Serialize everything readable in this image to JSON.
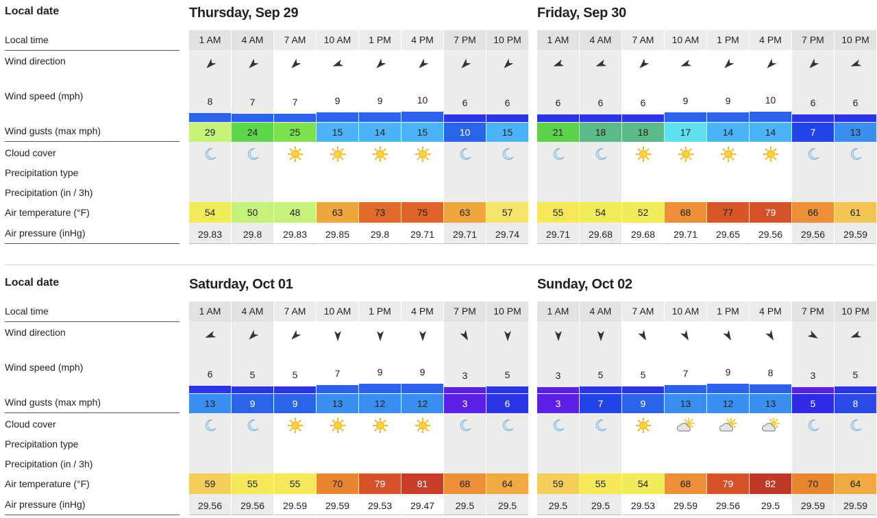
{
  "labels": {
    "local_date": "Local date",
    "local_time": "Local time",
    "wind_direction": "Wind direction",
    "wind_speed": "Wind speed (mph)",
    "wind_gusts": "Wind gusts (max mph)",
    "cloud_cover": "Cloud cover",
    "precip_type": "Precipitation type",
    "precip": "Precipitation (in / 3h)",
    "air_temp": "Air temperature (°F)",
    "air_pressure": "Air pressure (inHg)"
  },
  "colors": {
    "night_shade": "#ececec",
    "wind_bar": "#2742ef",
    "gust_scale": {
      "3": "#5d1fe3",
      "5": "#2f2ae6",
      "6": "#2a35e6",
      "7": "#2345e8",
      "8": "#2a4ae6",
      "9": "#2a64e8",
      "10": "#2a64e8",
      "12": "#3a8ef0",
      "13": "#3a8ef0",
      "14": "#4ab4f6",
      "15": "#4ab4f6",
      "17": "#5ee0ee",
      "18": "#5cb98a",
      "21": "#5cd14a",
      "24": "#5cd64a",
      "25": "#7be24d",
      "29": "#c6f37a"
    },
    "temp_scale": {
      "48": "#c6f27a",
      "50": "#c6f27a",
      "52": "#f1ec5a",
      "54": "#f1ec5a",
      "55": "#f7e85a",
      "57": "#f4e46a",
      "59": "#f3cf5a",
      "61": "#f3c552",
      "63": "#f0a63e",
      "64": "#f0aa40",
      "66": "#ec8f38",
      "68": "#ec8f38",
      "70": "#e8852f",
      "73": "#e06a2b",
      "75": "#de6429",
      "77": "#d8572a",
      "79": "#d45129",
      "81": "#c83d28",
      "82": "#be3a27"
    }
  },
  "blocks": [
    {
      "days": [
        {
          "title": "Thursday, Sep 29",
          "hours": [
            {
              "time": "1 AM",
              "night": true,
              "dir": "ne",
              "speed": "8",
              "gust": "29",
              "cloud": "moon",
              "temp": "54",
              "pressure": "29.83"
            },
            {
              "time": "4 AM",
              "night": true,
              "dir": "ne",
              "speed": "7",
              "gust": "24",
              "cloud": "moon",
              "temp": "50",
              "pressure": "29.8"
            },
            {
              "time": "7 AM",
              "night": false,
              "dir": "ne",
              "speed": "7",
              "gust": "25",
              "cloud": "sun",
              "temp": "48",
              "pressure": "29.83"
            },
            {
              "time": "10 AM",
              "night": false,
              "dir": "e",
              "speed": "9",
              "gust": "15",
              "cloud": "sun",
              "temp": "63",
              "pressure": "29.85"
            },
            {
              "time": "1 PM",
              "night": false,
              "dir": "ne",
              "speed": "9",
              "gust": "14",
              "cloud": "sun",
              "temp": "73",
              "pressure": "29.8"
            },
            {
              "time": "4 PM",
              "night": false,
              "dir": "ne",
              "speed": "10",
              "gust": "15",
              "cloud": "sun",
              "temp": "75",
              "pressure": "29.71"
            },
            {
              "time": "7 PM",
              "night": true,
              "dir": "ne",
              "speed": "6",
              "gust": "10",
              "cloud": "moon",
              "temp": "63",
              "pressure": "29.71"
            },
            {
              "time": "10 PM",
              "night": true,
              "dir": "ne",
              "speed": "6",
              "gust": "15",
              "cloud": "moon",
              "temp": "57",
              "pressure": "29.74"
            }
          ]
        },
        {
          "title": "Friday, Sep 30",
          "hours": [
            {
              "time": "1 AM",
              "night": true,
              "dir": "e",
              "speed": "6",
              "gust": "21",
              "cloud": "moon",
              "temp": "55",
              "pressure": "29.71"
            },
            {
              "time": "4 AM",
              "night": true,
              "dir": "e",
              "speed": "6",
              "gust": "18",
              "cloud": "moon",
              "temp": "54",
              "pressure": "29.68"
            },
            {
              "time": "7 AM",
              "night": false,
              "dir": "ne",
              "speed": "6",
              "gust": "18",
              "cloud": "sun",
              "temp": "52",
              "pressure": "29.68"
            },
            {
              "time": "10 AM",
              "night": false,
              "dir": "e",
              "speed": "9",
              "gust": "17",
              "cloud": "sun",
              "temp": "68",
              "pressure": "29.71"
            },
            {
              "time": "1 PM",
              "night": false,
              "dir": "ne",
              "speed": "9",
              "gust": "14",
              "cloud": "sun",
              "temp": "77",
              "pressure": "29.65"
            },
            {
              "time": "4 PM",
              "night": false,
              "dir": "ne",
              "speed": "10",
              "gust": "14",
              "cloud": "sun",
              "temp": "79",
              "pressure": "29.56"
            },
            {
              "time": "7 PM",
              "night": true,
              "dir": "ne",
              "speed": "6",
              "gust": "7",
              "cloud": "moon",
              "temp": "66",
              "pressure": "29.56"
            },
            {
              "time": "10 PM",
              "night": true,
              "dir": "e",
              "speed": "6",
              "gust": "13",
              "cloud": "moon",
              "temp": "61",
              "pressure": "29.59"
            }
          ]
        }
      ]
    },
    {
      "days": [
        {
          "title": "Saturday, Oct 01",
          "hours": [
            {
              "time": "1 AM",
              "night": true,
              "dir": "e",
              "speed": "6",
              "gust": "13",
              "cloud": "moon",
              "temp": "59",
              "pressure": "29.56"
            },
            {
              "time": "4 AM",
              "night": true,
              "dir": "ne",
              "speed": "5",
              "gust": "9",
              "cloud": "moon",
              "temp": "55",
              "pressure": "29.56"
            },
            {
              "time": "7 AM",
              "night": false,
              "dir": "ne",
              "speed": "5",
              "gust": "9",
              "cloud": "sun",
              "temp": "55",
              "pressure": "29.59"
            },
            {
              "time": "10 AM",
              "night": false,
              "dir": "n",
              "speed": "7",
              "gust": "13",
              "cloud": "sun",
              "temp": "70",
              "pressure": "29.59"
            },
            {
              "time": "1 PM",
              "night": false,
              "dir": "n",
              "speed": "9",
              "gust": "12",
              "cloud": "sun",
              "temp": "79",
              "pressure": "29.53"
            },
            {
              "time": "4 PM",
              "night": false,
              "dir": "n",
              "speed": "9",
              "gust": "12",
              "cloud": "sun",
              "temp": "81",
              "pressure": "29.47"
            },
            {
              "time": "7 PM",
              "night": true,
              "dir": "nw",
              "speed": "3",
              "gust": "3",
              "cloud": "moon",
              "temp": "68",
              "pressure": "29.5"
            },
            {
              "time": "10 PM",
              "night": true,
              "dir": "n",
              "speed": "5",
              "gust": "6",
              "cloud": "moon",
              "temp": "64",
              "pressure": "29.5"
            }
          ]
        },
        {
          "title": "Sunday, Oct 02",
          "hours": [
            {
              "time": "1 AM",
              "night": true,
              "dir": "n",
              "speed": "3",
              "gust": "3",
              "cloud": "moon",
              "temp": "59",
              "pressure": "29.5"
            },
            {
              "time": "4 AM",
              "night": true,
              "dir": "n",
              "speed": "5",
              "gust": "7",
              "cloud": "moon",
              "temp": "55",
              "pressure": "29.5"
            },
            {
              "time": "7 AM",
              "night": false,
              "dir": "nw",
              "speed": "5",
              "gust": "9",
              "cloud": "sun",
              "temp": "54",
              "pressure": "29.53"
            },
            {
              "time": "10 AM",
              "night": false,
              "dir": "nw",
              "speed": "7",
              "gust": "13",
              "cloud": "partly",
              "temp": "68",
              "pressure": "29.59"
            },
            {
              "time": "1 PM",
              "night": false,
              "dir": "nw",
              "speed": "9",
              "gust": "12",
              "cloud": "partly",
              "temp": "79",
              "pressure": "29.56"
            },
            {
              "time": "4 PM",
              "night": false,
              "dir": "nw",
              "speed": "8",
              "gust": "13",
              "cloud": "partly",
              "temp": "82",
              "pressure": "29.5"
            },
            {
              "time": "7 PM",
              "night": true,
              "dir": "w",
              "speed": "3",
              "gust": "5",
              "cloud": "moon",
              "temp": "70",
              "pressure": "29.59"
            },
            {
              "time": "10 PM",
              "night": true,
              "dir": "e",
              "speed": "5",
              "gust": "8",
              "cloud": "moon",
              "temp": "64",
              "pressure": "29.59"
            }
          ]
        }
      ]
    }
  ]
}
